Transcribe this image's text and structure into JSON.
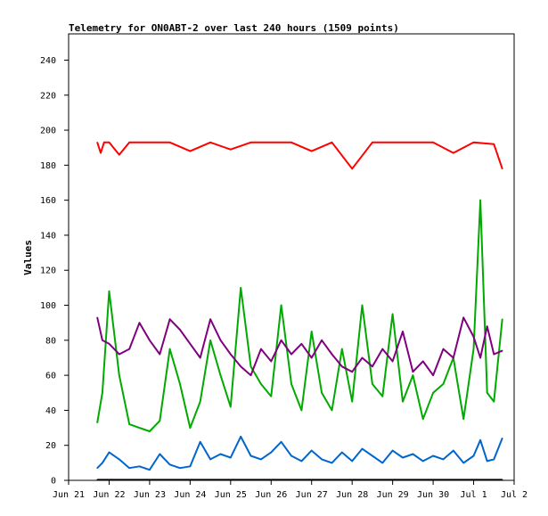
{
  "chart_data": {
    "type": "line",
    "title": "Telemetry for ON0ABT-2 over last 240 hours (1509 points)",
    "xlabel": "",
    "ylabel": "Values",
    "ylim": [
      0,
      255
    ],
    "y_ticks": [
      0,
      20,
      40,
      60,
      80,
      100,
      120,
      140,
      160,
      180,
      200,
      220,
      240
    ],
    "x_ticks": [
      "Jun 21",
      "Jun 22",
      "Jun 23",
      "Jun 24",
      "Jun 25",
      "Jun 26",
      "Jun 27",
      "Jun 28",
      "Jun 29",
      "Jun 30",
      "Jul 1",
      "Jul 2"
    ],
    "x_domain_days": [
      "Jun 21",
      "Jul 2"
    ],
    "grid": false,
    "legend": "none",
    "series": [
      {
        "color": "#ff0000",
        "x": [
          "Jun 21 17:00",
          "Jun 21 19:00",
          "Jun 21 21:00",
          "Jun 22 00:00",
          "Jun 22 06:00",
          "Jun 22 12:00",
          "Jun 22 18:00",
          "Jun 23 00:00",
          "Jun 23 12:00",
          "Jun 24 00:00",
          "Jun 24 12:00",
          "Jun 25 00:00",
          "Jun 25 12:00",
          "Jun 26 00:00",
          "Jun 26 12:00",
          "Jun 27 00:00",
          "Jun 27 12:00",
          "Jun 28 00:00",
          "Jun 28 12:00",
          "Jun 29 00:00",
          "Jun 29 12:00",
          "Jun 30 00:00",
          "Jun 30 12:00",
          "Jul 1 00:00",
          "Jul 1 12:00",
          "Jul 1 17:00"
        ],
        "values": [
          193,
          187,
          193,
          193,
          186,
          193,
          193,
          193,
          193,
          188,
          193,
          189,
          193,
          193,
          193,
          188,
          193,
          178,
          193,
          193,
          193,
          193,
          187,
          193,
          192,
          178
        ]
      },
      {
        "color": "#00aa00",
        "x": [
          "Jun 21 17:00",
          "Jun 21 20:00",
          "Jun 22 00:00",
          "Jun 22 06:00",
          "Jun 22 12:00",
          "Jun 22 18:00",
          "Jun 23 00:00",
          "Jun 23 06:00",
          "Jun 23 12:00",
          "Jun 23 18:00",
          "Jun 24 00:00",
          "Jun 24 06:00",
          "Jun 24 12:00",
          "Jun 24 18:00",
          "Jun 25 00:00",
          "Jun 25 06:00",
          "Jun 25 12:00",
          "Jun 25 18:00",
          "Jun 26 00:00",
          "Jun 26 06:00",
          "Jun 26 12:00",
          "Jun 26 18:00",
          "Jun 27 00:00",
          "Jun 27 06:00",
          "Jun 27 12:00",
          "Jun 27 18:00",
          "Jun 28 00:00",
          "Jun 28 06:00",
          "Jun 28 12:00",
          "Jun 28 18:00",
          "Jun 29 00:00",
          "Jun 29 06:00",
          "Jun 29 12:00",
          "Jun 29 18:00",
          "Jun 30 00:00",
          "Jun 30 06:00",
          "Jun 30 12:00",
          "Jun 30 18:00",
          "Jul 1 00:00",
          "Jul 1 04:00",
          "Jul 1 08:00",
          "Jul 1 12:00",
          "Jul 1 17:00"
        ],
        "values": [
          33,
          50,
          108,
          60,
          32,
          30,
          28,
          34,
          75,
          55,
          30,
          45,
          80,
          60,
          42,
          110,
          65,
          55,
          48,
          100,
          55,
          40,
          85,
          50,
          40,
          75,
          45,
          100,
          55,
          48,
          95,
          45,
          60,
          35,
          50,
          55,
          70,
          35,
          75,
          160,
          50,
          45,
          92
        ]
      },
      {
        "color": "#800080",
        "x": [
          "Jun 21 17:00",
          "Jun 21 20:00",
          "Jun 22 00:00",
          "Jun 22 06:00",
          "Jun 22 12:00",
          "Jun 22 18:00",
          "Jun 23 00:00",
          "Jun 23 06:00",
          "Jun 23 12:00",
          "Jun 23 18:00",
          "Jun 24 00:00",
          "Jun 24 06:00",
          "Jun 24 12:00",
          "Jun 24 18:00",
          "Jun 25 00:00",
          "Jun 25 06:00",
          "Jun 25 12:00",
          "Jun 25 18:00",
          "Jun 26 00:00",
          "Jun 26 06:00",
          "Jun 26 12:00",
          "Jun 26 18:00",
          "Jun 27 00:00",
          "Jun 27 06:00",
          "Jun 27 12:00",
          "Jun 27 18:00",
          "Jun 28 00:00",
          "Jun 28 06:00",
          "Jun 28 12:00",
          "Jun 28 18:00",
          "Jun 29 00:00",
          "Jun 29 06:00",
          "Jun 29 12:00",
          "Jun 29 18:00",
          "Jun 30 00:00",
          "Jun 30 06:00",
          "Jun 30 12:00",
          "Jun 30 18:00",
          "Jul 1 00:00",
          "Jul 1 04:00",
          "Jul 1 08:00",
          "Jul 1 12:00",
          "Jul 1 17:00"
        ],
        "values": [
          93,
          80,
          78,
          72,
          75,
          90,
          80,
          72,
          92,
          86,
          78,
          70,
          92,
          80,
          72,
          65,
          60,
          75,
          68,
          80,
          72,
          78,
          70,
          80,
          72,
          65,
          62,
          70,
          65,
          75,
          68,
          85,
          62,
          68,
          60,
          75,
          70,
          93,
          82,
          70,
          88,
          72,
          74
        ]
      },
      {
        "color": "#0066cc",
        "x": [
          "Jun 21 17:00",
          "Jun 21 20:00",
          "Jun 22 00:00",
          "Jun 22 06:00",
          "Jun 22 12:00",
          "Jun 22 18:00",
          "Jun 23 00:00",
          "Jun 23 06:00",
          "Jun 23 12:00",
          "Jun 23 18:00",
          "Jun 24 00:00",
          "Jun 24 06:00",
          "Jun 24 12:00",
          "Jun 24 18:00",
          "Jun 25 00:00",
          "Jun 25 06:00",
          "Jun 25 12:00",
          "Jun 25 18:00",
          "Jun 26 00:00",
          "Jun 26 06:00",
          "Jun 26 12:00",
          "Jun 26 18:00",
          "Jun 27 00:00",
          "Jun 27 06:00",
          "Jun 27 12:00",
          "Jun 27 18:00",
          "Jun 28 00:00",
          "Jun 28 06:00",
          "Jun 28 12:00",
          "Jun 28 18:00",
          "Jun 29 00:00",
          "Jun 29 06:00",
          "Jun 29 12:00",
          "Jun 29 18:00",
          "Jun 30 00:00",
          "Jun 30 06:00",
          "Jun 30 12:00",
          "Jun 30 18:00",
          "Jul 1 00:00",
          "Jul 1 04:00",
          "Jul 1 08:00",
          "Jul 1 12:00",
          "Jul 1 17:00"
        ],
        "values": [
          7,
          10,
          16,
          12,
          7,
          8,
          6,
          15,
          9,
          7,
          8,
          22,
          12,
          15,
          13,
          25,
          14,
          12,
          16,
          22,
          14,
          11,
          17,
          12,
          10,
          16,
          11,
          18,
          14,
          10,
          17,
          13,
          15,
          11,
          14,
          12,
          17,
          10,
          14,
          23,
          11,
          12,
          24
        ]
      },
      {
        "color": "#000000",
        "x": [
          "Jun 21 17:00",
          "Jul 1 17:00"
        ],
        "values": [
          0.3,
          0.3
        ]
      }
    ]
  }
}
